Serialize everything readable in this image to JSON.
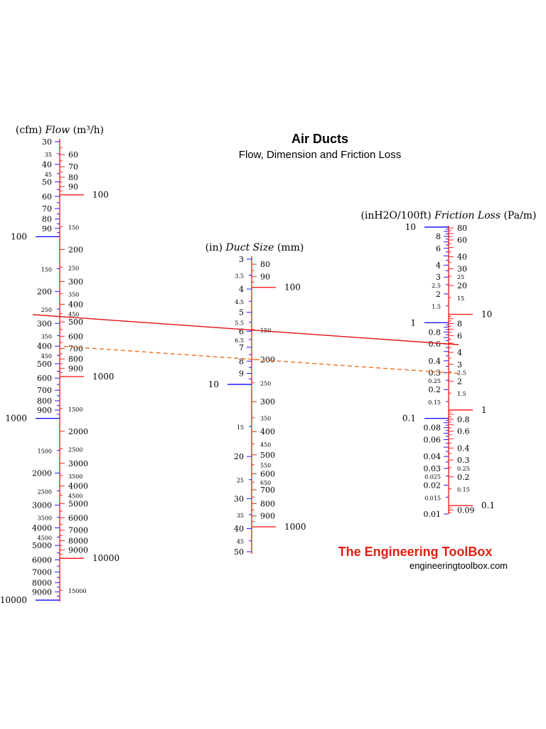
{
  "title": "Air Ducts",
  "subtitle": "Flow, Dimension and Friction Loss",
  "brand": "The Engineering ToolBox",
  "url": "engineeringtoolbox.com",
  "colors": {
    "left_scale": "#1a1aff",
    "right_scale": "#ff2020",
    "solid_line": "#e01010",
    "dashed_line": "#f07020"
  },
  "scales": [
    {
      "id": "flow",
      "label_left": "(cfm)",
      "label_main": "Flow",
      "label_units": "(m³/h)",
      "left_labels": [
        "30",
        "35",
        "40",
        "45",
        "50",
        "60",
        "70",
        "80",
        "90",
        "100",
        "150",
        "200",
        "250",
        "300",
        "350",
        "400",
        "450",
        "500",
        "600",
        "700",
        "800",
        "900",
        "1000",
        "1500",
        "2000",
        "2500",
        "3000",
        "3500",
        "4000",
        "4500",
        "5000",
        "6000",
        "7000",
        "8000",
        "9000",
        "10000"
      ],
      "right_labels": [
        "60",
        "70",
        "80",
        "90",
        "100",
        "150",
        "200",
        "250",
        "300",
        "350",
        "400",
        "450",
        "500",
        "600",
        "700",
        "800",
        "900",
        "1000",
        "1500",
        "2000",
        "2500",
        "3000",
        "3500",
        "4000",
        "4500",
        "5000",
        "6000",
        "7000",
        "8000",
        "9000",
        "10000",
        "15000"
      ]
    },
    {
      "id": "duct",
      "label_left": "(in)",
      "label_main": "Duct Size",
      "label_units": "(mm)",
      "left_labels": [
        "3",
        "3.5",
        "4",
        "4.5",
        "5",
        "5.5",
        "6",
        "6.5",
        "7",
        "8",
        "9",
        "10",
        "15",
        "20",
        "25",
        "30",
        "35",
        "40",
        "45",
        "50"
      ],
      "right_labels": [
        "80",
        "90",
        "100",
        "150",
        "200",
        "250",
        "300",
        "350",
        "400",
        "450",
        "500",
        "550",
        "600",
        "650",
        "700",
        "800",
        "900",
        "1000"
      ]
    },
    {
      "id": "friction",
      "label_left": "(inH2O/100ft)",
      "label_main": "Friction Loss",
      "label_units": "(Pa/m)",
      "left_labels": [
        "10",
        "8",
        "6",
        "4",
        "3",
        "2.5",
        "2",
        "1.5",
        "1",
        "0.8",
        "0.6",
        "0.4",
        "0.3",
        "0.25",
        "0.2",
        "0.15",
        "0.1",
        "0.08",
        "0.06",
        "0.04",
        "0.03",
        "0.025",
        "0.02",
        "0.015",
        "0.01"
      ],
      "right_labels": [
        "80",
        "60",
        "40",
        "30",
        "25",
        "20",
        "15",
        "10",
        "8",
        "6",
        "4",
        "3",
        "2.5",
        "2",
        "1.5",
        "1",
        "0.8",
        "0.6",
        "0.4",
        "0.3",
        "0.25",
        "0.2",
        "0.15",
        "0.1",
        "0.09"
      ]
    }
  ],
  "example_lines": [
    {
      "style": "solid",
      "flow_cfm": 275,
      "duct_in": 6,
      "friction_inH2O_100ft": 0.6
    },
    {
      "style": "dashed",
      "flow_cfm": 400,
      "duct_in": 8,
      "friction_inH2O_100ft": 0.3
    }
  ]
}
